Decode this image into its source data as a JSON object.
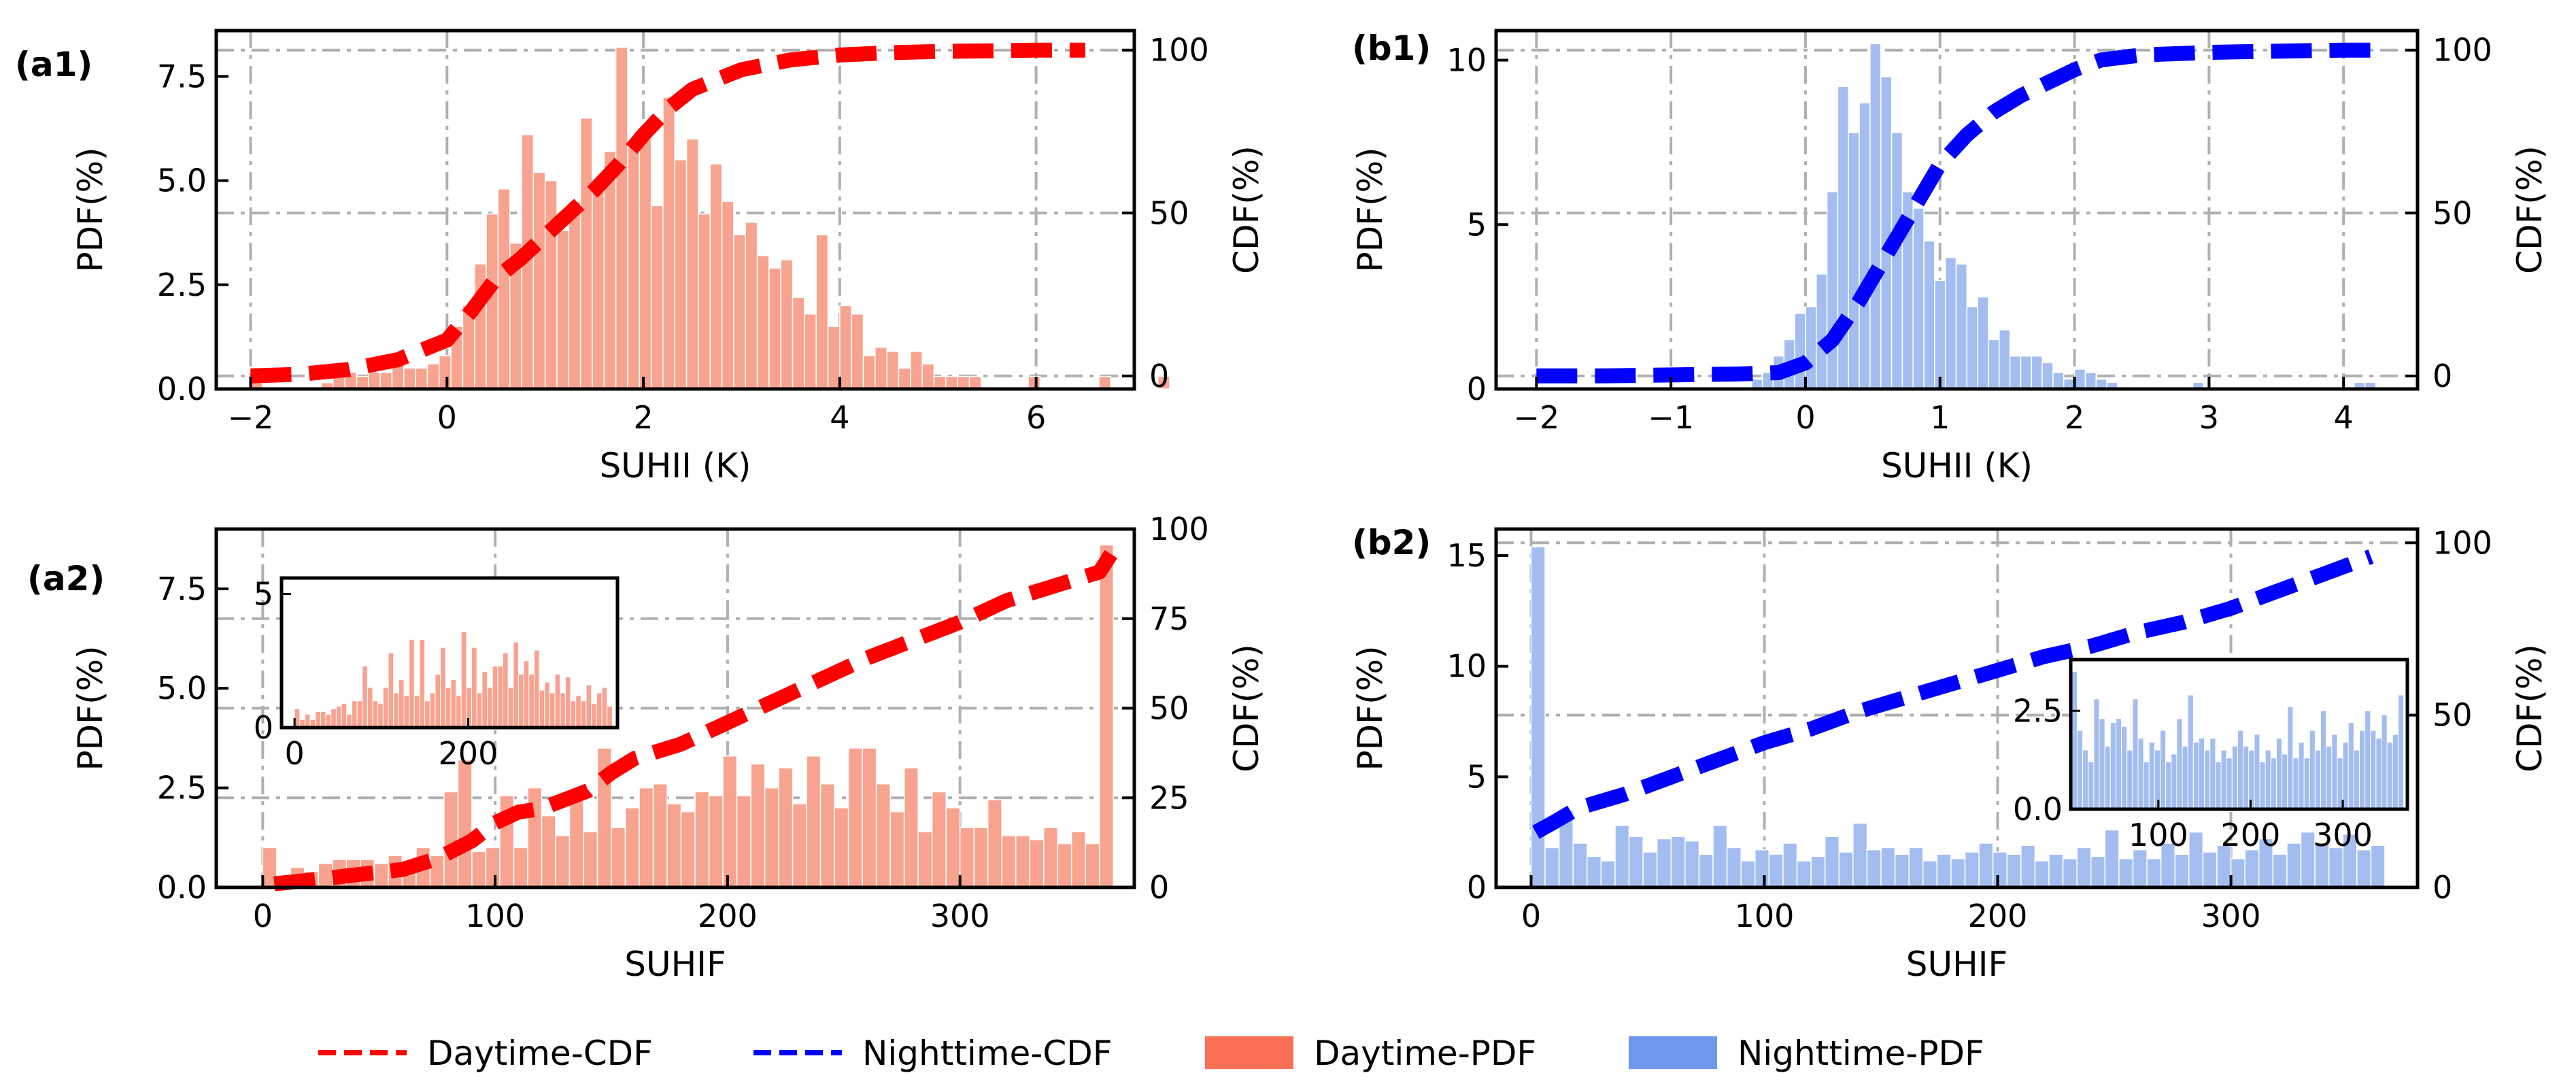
{
  "colors": {
    "day_pdf": "#f7a38f",
    "night_pdf": "#a3bdf0",
    "day_cdf": "#ff0000",
    "night_cdf": "#0000ff",
    "legend_day_pdf": "#fa6f55",
    "legend_night_pdf": "#6f98ea",
    "grid": "#b0b0b0"
  },
  "legend": {
    "items": [
      {
        "label": "Daytime-CDF",
        "kind": "line",
        "color_key": "day_cdf"
      },
      {
        "label": "Nighttime-CDF",
        "kind": "line",
        "color_key": "night_cdf"
      },
      {
        "label": "Daytime-PDF",
        "kind": "patch",
        "color_key": "legend_day_pdf"
      },
      {
        "label": "Nighttime-PDF",
        "kind": "patch",
        "color_key": "legend_night_pdf"
      }
    ]
  },
  "chart_data": [
    {
      "panel": "(a1)",
      "type": "bar",
      "xlabel": "SUHII (K)",
      "ylabel": "PDF(%)",
      "y2label": "CDF(%)",
      "xlim": [
        -2.35,
        7.0
      ],
      "ylim": [
        0,
        8.6
      ],
      "y2lim": [
        -4,
        106
      ],
      "xticks": [
        -2,
        0,
        2,
        4,
        6
      ],
      "xticklabels": [
        "−2",
        "0",
        "2",
        "4",
        "6"
      ],
      "yticks": [
        0,
        2.5,
        5,
        7.5
      ],
      "yticklabels": [
        "0.0",
        "2.5",
        "5.0",
        "7.5"
      ],
      "y2ticks": [
        0,
        50,
        100
      ],
      "y2ticklabels": [
        "0",
        "50",
        "100"
      ],
      "grid": true,
      "pdf_color_key": "day_pdf",
      "cdf_color_key": "day_cdf",
      "series": [
        {
          "name": "Daytime-PDF",
          "kind": "hist",
          "bins_start": -2.0,
          "bin_width": 0.12,
          "values": [
            0.15,
            0,
            0,
            0,
            0,
            0,
            0.15,
            0.3,
            0.4,
            0.3,
            0.4,
            0.4,
            0.6,
            0.5,
            0.5,
            0.6,
            0.8,
            1.5,
            2.0,
            3.0,
            4.2,
            4.8,
            3.5,
            6.1,
            5.2,
            5.0,
            3.8,
            4.5,
            6.5,
            4.8,
            5.7,
            8.2,
            5.8,
            6.0,
            4.4,
            7.0,
            5.5,
            6.0,
            4.2,
            5.4,
            4.5,
            3.7,
            4.0,
            3.2,
            2.9,
            3.1,
            2.2,
            1.8,
            3.7,
            1.5,
            2.0,
            1.8,
            0.8,
            1.0,
            0.9,
            0.5,
            0.9,
            0.6,
            0.3,
            0.3,
            0.3,
            0.3,
            0,
            0,
            0,
            0,
            0.3,
            0,
            0,
            0,
            0,
            0,
            0.3,
            0,
            0,
            0,
            0,
            0.3
          ]
        },
        {
          "name": "Daytime-CDF",
          "kind": "line",
          "axis": "right",
          "x": [
            -2,
            -1.5,
            -1,
            -0.5,
            0,
            0.25,
            0.5,
            0.75,
            1,
            1.25,
            1.5,
            1.75,
            2,
            2.25,
            2.5,
            3,
            3.5,
            4,
            4.5,
            5,
            5.5,
            6,
            6.5
          ],
          "y": [
            0,
            0.5,
            2,
            5,
            11,
            20,
            30,
            36,
            43,
            50,
            57,
            65,
            74,
            82,
            88,
            94,
            97,
            98.5,
            99.2,
            99.6,
            99.8,
            100,
            100
          ]
        }
      ]
    },
    {
      "panel": "(b1)",
      "type": "bar",
      "xlabel": "SUHII (K)",
      "ylabel": "PDF(%)",
      "y2label": "CDF(%)",
      "xlim": [
        -2.3,
        4.55
      ],
      "ylim": [
        0,
        10.9
      ],
      "y2lim": [
        -4,
        106
      ],
      "xticks": [
        -2,
        -1,
        0,
        1,
        2,
        3,
        4
      ],
      "xticklabels": [
        "−2",
        "−1",
        "0",
        "1",
        "2",
        "3",
        "4"
      ],
      "yticks": [
        0,
        5,
        10
      ],
      "yticklabels": [
        "0",
        "5",
        "10"
      ],
      "y2ticks": [
        0,
        50,
        100
      ],
      "y2ticklabels": [
        "0",
        "50",
        "100"
      ],
      "grid": true,
      "pdf_color_key": "night_pdf",
      "cdf_color_key": "night_cdf",
      "series": [
        {
          "name": "Nighttime-PDF",
          "kind": "hist",
          "bins_start": -0.4,
          "bin_width": 0.08,
          "values": [
            0.3,
            0.5,
            1.0,
            1.5,
            2.3,
            2.5,
            3.5,
            6.0,
            9.2,
            7.8,
            8.7,
            10.5,
            9.5,
            7.8,
            6.0,
            5.5,
            4.5,
            3.3,
            4.0,
            3.8,
            2.5,
            2.8,
            1.5,
            1.8,
            1.0,
            1.0,
            1.0,
            0.8,
            0.5,
            0.3,
            0.6,
            0.5,
            0.3,
            0.2,
            0,
            0,
            0,
            0,
            0,
            0,
            0,
            0.2,
            0,
            0,
            0,
            0,
            0,
            0,
            0,
            0,
            0,
            0,
            0,
            0,
            0,
            0,
            0.2,
            0.2
          ]
        },
        {
          "name": "Nighttime-CDF",
          "kind": "line",
          "axis": "right",
          "x": [
            -2,
            -1.5,
            -1,
            -0.5,
            -0.2,
            0,
            0.2,
            0.4,
            0.6,
            0.8,
            1,
            1.2,
            1.4,
            1.6,
            1.8,
            2,
            2.2,
            2.5,
            3,
            3.5,
            4,
            4.3
          ],
          "y": [
            0,
            0,
            0.3,
            0.6,
            1,
            4,
            11,
            23,
            37,
            51,
            65,
            74,
            81,
            86,
            90,
            94,
            97,
            98.5,
            99.3,
            99.7,
            100,
            100
          ]
        }
      ]
    },
    {
      "panel": "(a2)",
      "type": "bar",
      "xlabel": "SUHIF",
      "ylabel": "PDF(%)",
      "y2label": "CDF(%)",
      "xlim": [
        -20,
        375
      ],
      "ylim": [
        0,
        9.0
      ],
      "y2lim": [
        0,
        100
      ],
      "xticks": [
        0,
        100,
        200,
        300
      ],
      "xticklabels": [
        "0",
        "100",
        "200",
        "300"
      ],
      "yticks": [
        0,
        2.5,
        5,
        7.5
      ],
      "yticklabels": [
        "0.0",
        "2.5",
        "5.0",
        "7.5"
      ],
      "y2ticks": [
        0,
        25,
        50,
        75,
        100
      ],
      "y2ticklabels": [
        "0",
        "25",
        "50",
        "75",
        "100"
      ],
      "grid": true,
      "pdf_color_key": "day_pdf",
      "cdf_color_key": "day_cdf",
      "series": [
        {
          "name": "Daytime-PDF",
          "kind": "hist",
          "bins_start": 0,
          "bin_width": 6,
          "values": [
            1.0,
            0.3,
            0.5,
            0.4,
            0.6,
            0.7,
            0.7,
            0.7,
            0.6,
            0.8,
            0.6,
            1.0,
            0.8,
            2.4,
            3.2,
            0.9,
            1.0,
            2.3,
            1.0,
            2.5,
            1.8,
            1.3,
            2.4,
            1.4,
            3.5,
            1.5,
            2.0,
            2.5,
            2.6,
            2.1,
            1.9,
            2.4,
            2.3,
            3.3,
            2.3,
            3.1,
            2.5,
            3.0,
            2.1,
            3.3,
            2.6,
            2.0,
            3.5,
            3.5,
            2.6,
            1.9,
            3.0,
            1.4,
            2.4,
            2.0,
            1.5,
            1.5,
            2.2,
            1.3,
            1.3,
            1.2,
            1.5,
            1.1,
            1.4,
            1.1,
            8.6
          ]
        },
        {
          "name": "Daytime-CDF",
          "kind": "line",
          "axis": "right",
          "x": [
            5,
            20,
            40,
            60,
            75,
            90,
            100,
            110,
            120,
            140,
            150,
            160,
            180,
            200,
            220,
            240,
            260,
            280,
            300,
            320,
            340,
            360,
            365
          ],
          "y": [
            1,
            2,
            3.5,
            5,
            8,
            13,
            18,
            21,
            22,
            27,
            32,
            36,
            40,
            46,
            52,
            58,
            64,
            69,
            74,
            80,
            84,
            88,
            93
          ]
        },
        {
          "name": "Daytime-PDF-inset",
          "kind": "inset",
          "xlim": [
            -15,
            372
          ],
          "ylim": [
            0,
            5.6
          ],
          "xticks": [
            0,
            200
          ],
          "xticklabels": [
            "0",
            "200"
          ],
          "yticks": [
            0,
            5
          ],
          "yticklabels": [
            "0",
            "5"
          ],
          "bins_start": 0,
          "bin_width": 6,
          "values": [
            0.7,
            0.3,
            0.5,
            0.3,
            0.6,
            0.6,
            0.5,
            0.7,
            0.8,
            0.9,
            0.5,
            1.0,
            1.0,
            2.3,
            1.5,
            1.0,
            0.9,
            1.5,
            2.8,
            1.3,
            1.8,
            1.2,
            3.3,
            1.2,
            3.3,
            1.0,
            1.3,
            2.0,
            3.0,
            1.5,
            1.8,
            1.2,
            3.6,
            1.5,
            3.0,
            1.3,
            2.1,
            1.5,
            2.3,
            2.3,
            2.8,
            1.5,
            3.2,
            2.0,
            2.5,
            2.0,
            2.9,
            1.4,
            1.7,
            1.3,
            2.0,
            1.3,
            1.9,
            1.0,
            1.2,
            1.0,
            1.6,
            0.9,
            1.3,
            1.5,
            0.8
          ]
        }
      ]
    },
    {
      "panel": "(b2)",
      "type": "bar",
      "xlabel": "SUHIF",
      "ylabel": "PDF(%)",
      "y2label": "CDF(%)",
      "xlim": [
        -15,
        380
      ],
      "ylim": [
        0,
        16.2
      ],
      "y2lim": [
        0,
        104
      ],
      "xticks": [
        0,
        100,
        200,
        300
      ],
      "xticklabels": [
        "0",
        "100",
        "200",
        "300"
      ],
      "yticks": [
        0,
        5,
        10,
        15
      ],
      "yticklabels": [
        "0",
        "5",
        "10",
        "15"
      ],
      "y2ticks": [
        0,
        50,
        100
      ],
      "y2ticklabels": [
        "0",
        "50",
        "100"
      ],
      "grid": true,
      "pdf_color_key": "night_pdf",
      "cdf_color_key": "night_cdf",
      "series": [
        {
          "name": "Nighttime-PDF",
          "kind": "hist",
          "bins_start": 0,
          "bin_width": 6,
          "values": [
            15.4,
            1.8,
            3.5,
            2.0,
            1.4,
            1.2,
            2.8,
            2.3,
            1.6,
            2.2,
            2.3,
            2.1,
            1.5,
            2.8,
            1.8,
            1.2,
            1.7,
            1.5,
            2.0,
            1.2,
            1.4,
            2.3,
            1.6,
            2.9,
            1.7,
            1.8,
            1.5,
            1.8,
            1.2,
            1.5,
            1.3,
            1.6,
            2.0,
            1.6,
            1.5,
            1.9,
            1.2,
            1.5,
            1.3,
            1.8,
            1.4,
            2.6,
            1.3,
            1.7,
            1.3,
            2.0,
            1.5,
            2.5,
            1.6,
            1.9,
            1.3,
            1.7,
            2.2,
            1.5,
            2.0,
            2.5,
            2.0,
            1.8,
            2.4,
            1.7,
            1.9
          ]
        },
        {
          "name": "Nighttime-CDF",
          "kind": "line",
          "axis": "right",
          "x": [
            2,
            10,
            20,
            40,
            60,
            80,
            100,
            120,
            140,
            160,
            180,
            200,
            220,
            240,
            260,
            280,
            300,
            320,
            340,
            360
          ],
          "y": [
            16,
            19,
            23,
            27,
            32,
            37,
            42,
            46,
            51,
            55,
            59,
            63,
            67,
            70,
            74,
            77,
            81,
            86,
            91,
            96
          ]
        },
        {
          "name": "Nighttime-PDF-inset",
          "kind": "inset",
          "xlim": [
            5,
            370
          ],
          "ylim": [
            0,
            3.8
          ],
          "xticks": [
            100,
            200,
            300
          ],
          "xticklabels": [
            "100",
            "200",
            "300"
          ],
          "yticks": [
            0,
            2.5
          ],
          "yticklabels": [
            "0.0",
            "2.5"
          ],
          "bins_start": 6,
          "bin_width": 6,
          "values": [
            3.5,
            2.0,
            1.5,
            1.2,
            2.8,
            2.3,
            1.6,
            2.2,
            2.3,
            2.1,
            1.5,
            2.8,
            1.8,
            1.2,
            1.7,
            1.5,
            2.0,
            1.2,
            1.4,
            2.3,
            1.6,
            2.9,
            1.7,
            1.8,
            1.5,
            1.8,
            1.2,
            1.5,
            1.3,
            1.6,
            2.0,
            1.6,
            1.5,
            1.9,
            1.2,
            1.5,
            1.3,
            1.8,
            1.4,
            2.6,
            1.3,
            1.7,
            1.3,
            2.0,
            1.5,
            2.5,
            1.6,
            1.9,
            1.3,
            1.7,
            2.2,
            1.5,
            2.0,
            2.5,
            2.0,
            1.8,
            2.4,
            1.7,
            1.9,
            2.9
          ]
        }
      ]
    }
  ]
}
